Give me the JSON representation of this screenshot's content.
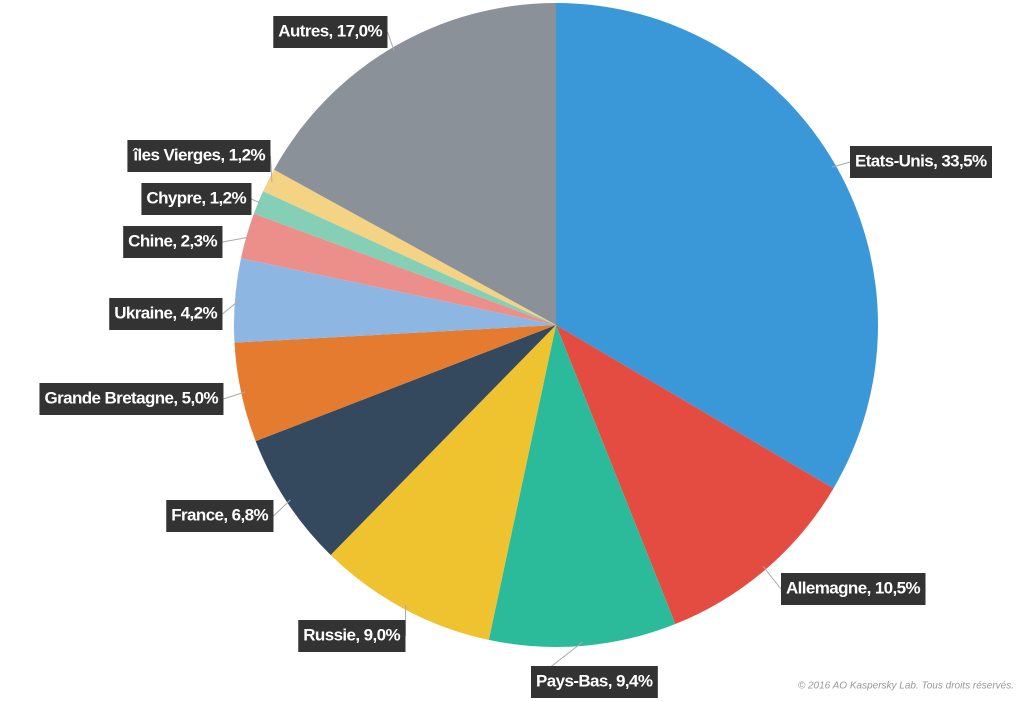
{
  "chart_data": {
    "type": "pie",
    "labels": [
      "Etats-Unis, 33,5%",
      "Allemagne, 10,5%",
      "Pays-Bas, 9,4%",
      "Russie, 9,0%",
      "France, 6,8%",
      "Grande Bretagne, 5,0%",
      "Ukraine, 4,2%",
      "Chine, 2,3%",
      "Chypre, 1,2%",
      "îles Vierges, 1,2%",
      "Autres, 17,0%"
    ],
    "values": [
      33.5,
      10.5,
      9.4,
      9.0,
      6.8,
      5.0,
      4.2,
      2.3,
      1.2,
      1.2,
      17.0
    ],
    "colors": [
      "#3a98d8",
      "#e44c41",
      "#2bbb9b",
      "#efc230",
      "#34495e",
      "#e57b2f",
      "#8db6e3",
      "#ec8f8a",
      "#84cfb5",
      "#f5d385",
      "#8a9199"
    ],
    "credit": "© 2016 AO Kaspersky Lab. Tous droits réservés."
  }
}
